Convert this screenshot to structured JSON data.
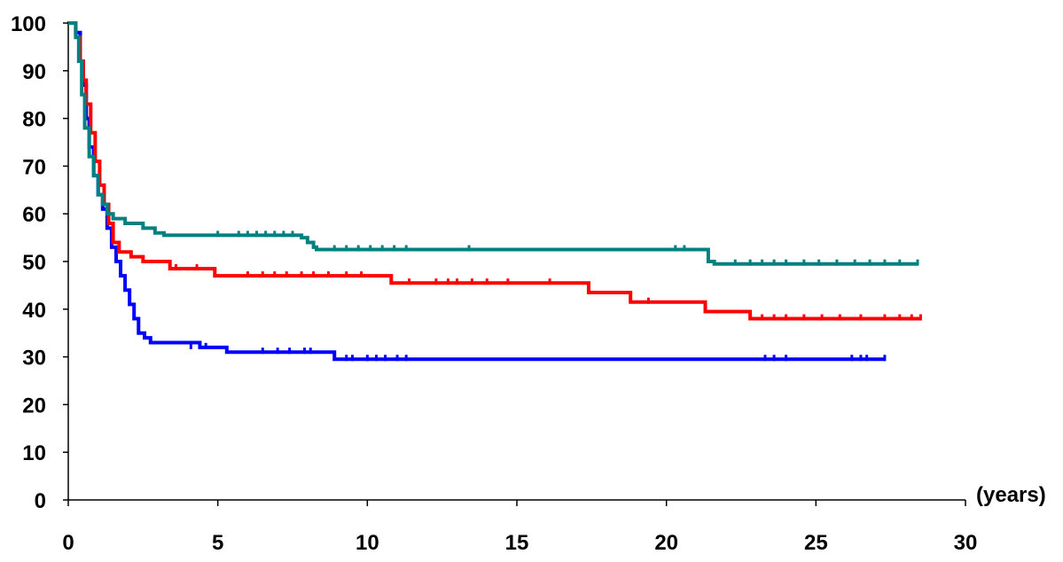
{
  "chart_data": {
    "type": "line",
    "step": true,
    "title": "",
    "xlabel": "(years)",
    "ylabel": "",
    "xlim": [
      0,
      30
    ],
    "ylim": [
      0,
      100
    ],
    "x_ticks": [
      0,
      5,
      10,
      15,
      20,
      25,
      30
    ],
    "y_ticks": [
      0,
      10,
      20,
      30,
      40,
      50,
      60,
      70,
      80,
      90,
      100
    ],
    "grid": false,
    "legend": "none",
    "series": [
      {
        "color": "#0000ff",
        "points": [
          [
            0,
            100
          ],
          [
            0.25,
            98
          ],
          [
            0.4,
            92
          ],
          [
            0.5,
            87
          ],
          [
            0.6,
            80
          ],
          [
            0.7,
            74
          ],
          [
            0.85,
            68
          ],
          [
            1.0,
            64
          ],
          [
            1.15,
            61
          ],
          [
            1.3,
            57
          ],
          [
            1.45,
            53
          ],
          [
            1.6,
            50
          ],
          [
            1.75,
            47
          ],
          [
            1.9,
            44
          ],
          [
            2.05,
            41
          ],
          [
            2.2,
            38
          ],
          [
            2.35,
            35
          ],
          [
            2.55,
            34
          ],
          [
            2.75,
            33
          ],
          [
            4.4,
            32
          ],
          [
            5.3,
            31
          ],
          [
            8.9,
            29.5
          ],
          [
            27.3,
            29.5
          ]
        ],
        "censored": [
          [
            4.1,
            32
          ],
          [
            4.6,
            32
          ],
          [
            6.5,
            31
          ],
          [
            7.0,
            31
          ],
          [
            7.4,
            31
          ],
          [
            7.9,
            31
          ],
          [
            8.1,
            31
          ],
          [
            9.3,
            29.5
          ],
          [
            9.5,
            29.5
          ],
          [
            10.0,
            29.5
          ],
          [
            10.3,
            29.5
          ],
          [
            10.6,
            29.5
          ],
          [
            11.0,
            29.5
          ],
          [
            11.3,
            29.5
          ],
          [
            23.3,
            29.5
          ],
          [
            23.6,
            29.5
          ],
          [
            24.0,
            29.5
          ],
          [
            26.2,
            29.5
          ],
          [
            26.5,
            29.5
          ],
          [
            26.7,
            29.5
          ],
          [
            27.3,
            29.5
          ]
        ]
      },
      {
        "color": "#ff0000",
        "points": [
          [
            0,
            100
          ],
          [
            0.25,
            97
          ],
          [
            0.4,
            92
          ],
          [
            0.5,
            88
          ],
          [
            0.6,
            83
          ],
          [
            0.75,
            77
          ],
          [
            0.9,
            71
          ],
          [
            1.05,
            66
          ],
          [
            1.2,
            62
          ],
          [
            1.35,
            58
          ],
          [
            1.5,
            54
          ],
          [
            1.7,
            52
          ],
          [
            2.1,
            51
          ],
          [
            2.5,
            50
          ],
          [
            3.4,
            48.5
          ],
          [
            4.9,
            47
          ],
          [
            10.8,
            45.5
          ],
          [
            17.4,
            43.5
          ],
          [
            18.8,
            41.5
          ],
          [
            21.3,
            39.5
          ],
          [
            22.8,
            38
          ],
          [
            28.5,
            38
          ]
        ],
        "censored": [
          [
            3.6,
            48.5
          ],
          [
            4.3,
            48.5
          ],
          [
            6.0,
            47
          ],
          [
            6.5,
            47
          ],
          [
            6.9,
            47
          ],
          [
            7.3,
            47
          ],
          [
            7.8,
            47
          ],
          [
            8.2,
            47
          ],
          [
            8.7,
            47
          ],
          [
            9.3,
            47
          ],
          [
            9.8,
            47
          ],
          [
            11.4,
            45.5
          ],
          [
            12.3,
            45.5
          ],
          [
            12.7,
            45.5
          ],
          [
            13.0,
            45.5
          ],
          [
            13.5,
            45.5
          ],
          [
            14.0,
            45.5
          ],
          [
            14.7,
            45.5
          ],
          [
            16.1,
            45.5
          ],
          [
            19.4,
            41.5
          ],
          [
            23.2,
            38
          ],
          [
            23.6,
            38
          ],
          [
            24.0,
            38
          ],
          [
            24.6,
            38
          ],
          [
            25.2,
            38
          ],
          [
            25.8,
            38
          ],
          [
            26.5,
            38
          ],
          [
            27.3,
            38
          ],
          [
            27.8,
            38
          ],
          [
            28.2,
            38
          ],
          [
            28.5,
            38
          ]
        ]
      },
      {
        "color": "#008080",
        "points": [
          [
            0,
            100
          ],
          [
            0.25,
            97
          ],
          [
            0.35,
            92
          ],
          [
            0.45,
            85
          ],
          [
            0.55,
            78
          ],
          [
            0.7,
            72
          ],
          [
            0.85,
            68
          ],
          [
            1.0,
            64
          ],
          [
            1.15,
            62
          ],
          [
            1.3,
            60
          ],
          [
            1.5,
            59
          ],
          [
            1.9,
            58
          ],
          [
            2.5,
            57
          ],
          [
            2.9,
            56
          ],
          [
            3.2,
            55.5
          ],
          [
            7.8,
            55
          ],
          [
            8.0,
            54
          ],
          [
            8.2,
            53
          ],
          [
            8.3,
            52.5
          ],
          [
            20.7,
            52.5
          ],
          [
            21.4,
            50
          ],
          [
            21.6,
            49.5
          ],
          [
            28.4,
            49.5
          ]
        ],
        "censored": [
          [
            5.0,
            55.5
          ],
          [
            5.7,
            55.5
          ],
          [
            6.0,
            55.5
          ],
          [
            6.3,
            55.5
          ],
          [
            6.6,
            55.5
          ],
          [
            6.9,
            55.5
          ],
          [
            7.2,
            55.5
          ],
          [
            7.5,
            55.5
          ],
          [
            8.9,
            52.5
          ],
          [
            9.3,
            52.5
          ],
          [
            9.7,
            52.5
          ],
          [
            10.1,
            52.5
          ],
          [
            10.5,
            52.5
          ],
          [
            10.9,
            52.5
          ],
          [
            11.3,
            52.5
          ],
          [
            13.4,
            52.5
          ],
          [
            20.3,
            52.5
          ],
          [
            20.6,
            52.5
          ],
          [
            22.3,
            49.5
          ],
          [
            22.8,
            49.5
          ],
          [
            23.2,
            49.5
          ],
          [
            23.6,
            49.5
          ],
          [
            24.0,
            49.5
          ],
          [
            24.6,
            49.5
          ],
          [
            25.1,
            49.5
          ],
          [
            25.7,
            49.5
          ],
          [
            26.3,
            49.5
          ],
          [
            26.8,
            49.5
          ],
          [
            27.3,
            49.5
          ],
          [
            27.8,
            49.5
          ],
          [
            28.4,
            49.5
          ]
        ]
      }
    ]
  }
}
